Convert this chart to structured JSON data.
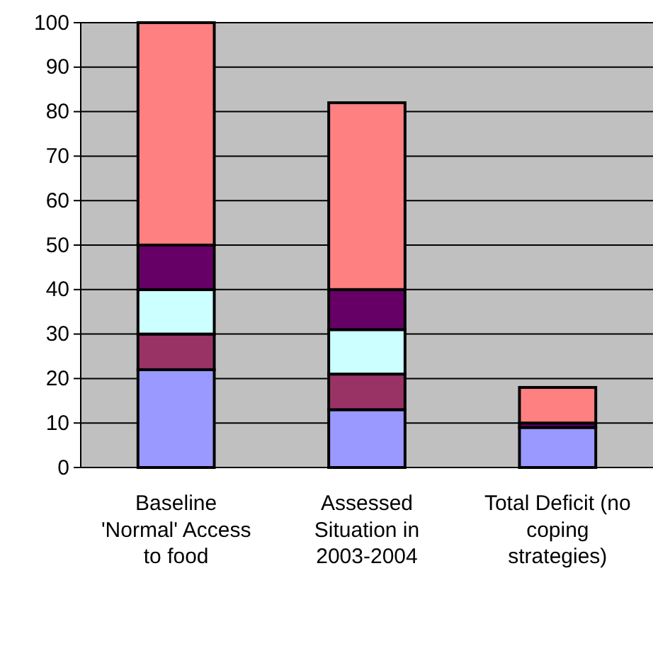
{
  "chart_data": {
    "type": "bar",
    "stacked": true,
    "categories": [
      "Baseline 'Normal' Access to food",
      "Assessed Situation in 2003-2004",
      "Total Deficit (no coping strategies)"
    ],
    "series": [
      {
        "color": "#9999ff",
        "values": [
          22,
          13,
          9
        ]
      },
      {
        "color": "#993366",
        "values": [
          8,
          8,
          0
        ]
      },
      {
        "color": "#ccffff",
        "values": [
          10,
          10,
          0
        ]
      },
      {
        "color": "#660066",
        "values": [
          10,
          9,
          1
        ]
      },
      {
        "color": "#ff8080",
        "values": [
          50,
          42,
          8
        ]
      }
    ],
    "ylim": [
      0,
      100
    ],
    "yticks": [
      0,
      10,
      20,
      30,
      40,
      50,
      60,
      70,
      80,
      90,
      100
    ],
    "grid": "y"
  }
}
